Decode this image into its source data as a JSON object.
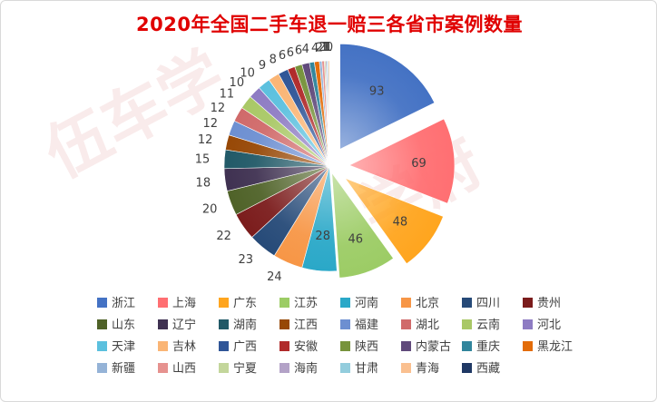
{
  "chart_data": {
    "type": "pie",
    "title": "2020年全国二手车退一赔三各省市案例数量",
    "legend_position": "bottom",
    "slices": [
      {
        "label": "浙江",
        "value": 93,
        "color": "#4472c4"
      },
      {
        "label": "上海",
        "value": 69,
        "color": "#ff6f72"
      },
      {
        "label": "广东",
        "value": 48,
        "color": "#ffa51e"
      },
      {
        "label": "江苏",
        "value": 46,
        "color": "#9ccc65"
      },
      {
        "label": "河南",
        "value": 28,
        "color": "#2aa8c8"
      },
      {
        "label": "北京",
        "value": 24,
        "color": "#f79646"
      },
      {
        "label": "四川",
        "value": 23,
        "color": "#264a78"
      },
      {
        "label": "贵州",
        "value": 22,
        "color": "#7b1c1c"
      },
      {
        "label": "山东",
        "value": 20,
        "color": "#4f6228"
      },
      {
        "label": "辽宁",
        "value": 18,
        "color": "#3f3151"
      },
      {
        "label": "湖南",
        "value": 15,
        "color": "#215967"
      },
      {
        "label": "江西",
        "value": 12,
        "color": "#974806"
      },
      {
        "label": "福建",
        "value": 12,
        "color": "#6d8fd1"
      },
      {
        "label": "湖北",
        "value": 12,
        "color": "#d06a6a"
      },
      {
        "label": "云南",
        "value": 11,
        "color": "#a9c866"
      },
      {
        "label": "河北",
        "value": 10,
        "color": "#8e7cc3"
      },
      {
        "label": "天津",
        "value": 10,
        "color": "#5bc0de"
      },
      {
        "label": "吉林",
        "value": 9,
        "color": "#fab575"
      },
      {
        "label": "广西",
        "value": 8,
        "color": "#2f5597"
      },
      {
        "label": "安徽",
        "value": 6,
        "color": "#b02a2a"
      },
      {
        "label": "陕西",
        "value": 6,
        "color": "#77933c"
      },
      {
        "label": "内蒙古",
        "value": 6,
        "color": "#604a7b"
      },
      {
        "label": "重庆",
        "value": 4,
        "color": "#31859c"
      },
      {
        "label": "黑龙江",
        "value": 4,
        "color": "#e36c09"
      },
      {
        "label": "新疆",
        "value": 2,
        "color": "#95b3d7"
      },
      {
        "label": "山西",
        "value": 2,
        "color": "#e6928f"
      },
      {
        "label": "宁夏",
        "value": 1,
        "color": "#c3d69b"
      },
      {
        "label": "海南",
        "value": 1,
        "color": "#b3a2c7"
      },
      {
        "label": "甘肃",
        "value": 1,
        "color": "#93cddd"
      },
      {
        "label": "青海",
        "value": 1,
        "color": "#fac090"
      },
      {
        "label": "西藏",
        "value": 0,
        "color": "#1f3864"
      }
    ]
  },
  "watermark": {
    "logo_left": "伍车学",
    "logo_right": "学府"
  }
}
